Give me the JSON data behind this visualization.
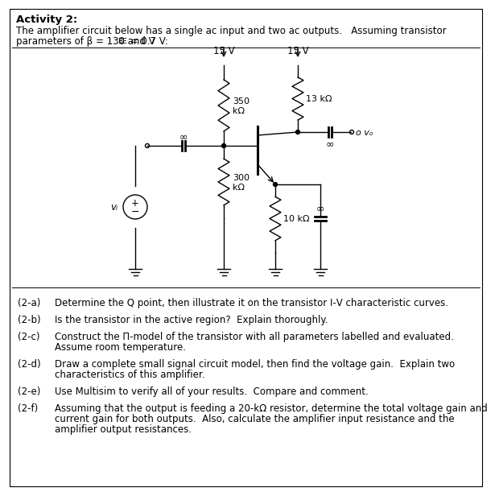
{
  "title": "Activity 2:",
  "line1": "The amplifier circuit below has a single ac input and two ac outputs.   Assuming transistor",
  "line2a": "parameters of β = 130 and V",
  "line2b": "BE",
  "line2c": " = 0.7 V:",
  "vcc_label": "15 V",
  "r1_label": "350\nkΩ",
  "r2_label": "300\nkΩ",
  "rc_label": "13 kΩ",
  "re_label": "10 kΩ",
  "vi_label": "vᵢ",
  "vo_label": "vₒ",
  "inf": "∞",
  "pi_char": "Π",
  "ohm": "Ω",
  "questions": [
    [
      "(2-a)",
      "Determine the Q point, then illustrate it on the transistor I‑V characteristic curves."
    ],
    [
      "(2-b)",
      "Is the transistor in the active region?  Explain thoroughly."
    ],
    [
      "(2-c)",
      "Construct the Π-model of the transistor with all parameters labelled and evaluated.",
      "Assume room temperature."
    ],
    [
      "(2-d)",
      "Draw a complete small signal circuit model, then find the voltage gain.  Explain two",
      "characteristics of this amplifier."
    ],
    [
      "(2-e)",
      "Use Multisim to verify all of your results.  Compare and comment."
    ],
    [
      "(2-f)",
      "Assuming that the output is feeding a 20-kΩ resistor, determine the total voltage gain and",
      "current gain for both outputs.  Also, calculate the amplifier input resistance and the",
      "amplifier output resistances."
    ]
  ],
  "bg_color": "#ffffff",
  "lc": "#000000"
}
